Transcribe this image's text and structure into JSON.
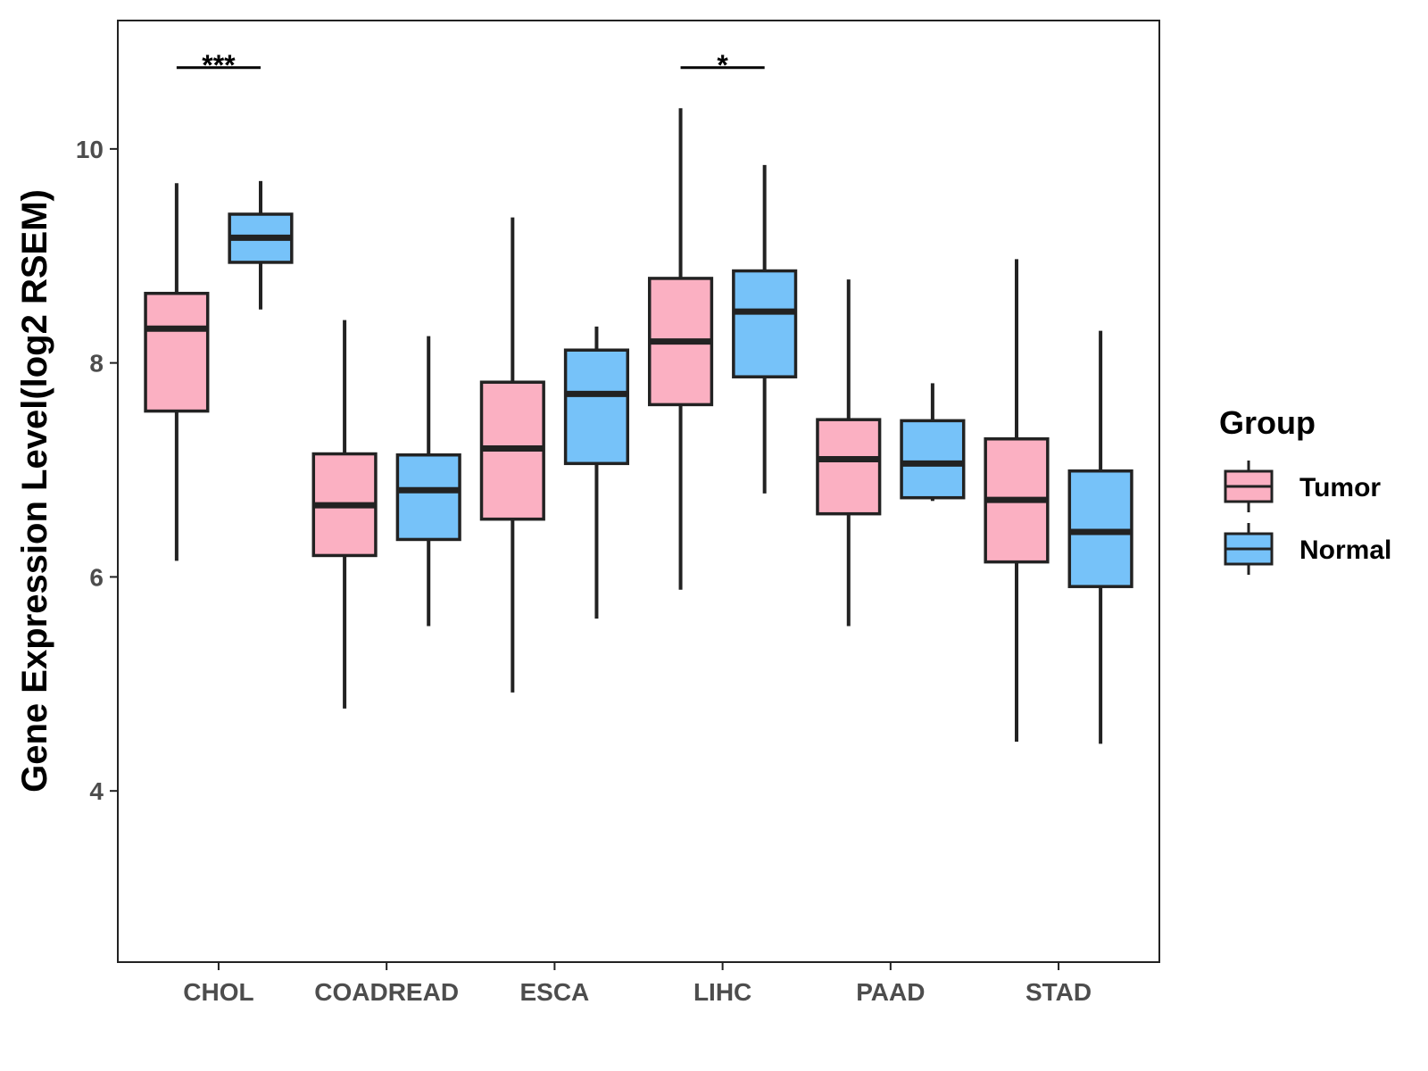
{
  "chart_data": {
    "type": "boxplot",
    "title": "",
    "xlabel": "",
    "ylabel": "Gene Expression Level(log2 RSEM)",
    "ylim": [
      2.4,
      11.2
    ],
    "yticks": [
      4,
      6,
      8,
      10
    ],
    "categories": [
      "CHOL",
      "COADREAD",
      "ESCA",
      "LIHC",
      "PAAD",
      "STAD"
    ],
    "legend": {
      "title": "Group",
      "position": "right"
    },
    "series": [
      {
        "name": "Tumor",
        "color": "#fbb0c2",
        "boxes": [
          {
            "min": 6.15,
            "q1": 7.55,
            "median": 8.32,
            "q3": 8.65,
            "max": 9.68
          },
          {
            "min": 4.77,
            "q1": 6.2,
            "median": 6.67,
            "q3": 7.15,
            "max": 8.4
          },
          {
            "min": 4.92,
            "q1": 6.54,
            "median": 7.2,
            "q3": 7.82,
            "max": 9.36
          },
          {
            "min": 5.88,
            "q1": 7.61,
            "median": 8.2,
            "q3": 8.79,
            "max": 10.38
          },
          {
            "min": 5.54,
            "q1": 6.59,
            "median": 7.1,
            "q3": 7.47,
            "max": 8.78
          },
          {
            "min": 4.46,
            "q1": 6.14,
            "median": 6.72,
            "q3": 7.29,
            "max": 8.97
          }
        ]
      },
      {
        "name": "Normal",
        "color": "#76c2f9",
        "boxes": [
          {
            "min": 8.5,
            "q1": 8.94,
            "median": 9.17,
            "q3": 9.39,
            "max": 9.7
          },
          {
            "min": 5.54,
            "q1": 6.35,
            "median": 6.81,
            "q3": 7.14,
            "max": 8.25
          },
          {
            "min": 5.61,
            "q1": 7.06,
            "median": 7.71,
            "q3": 8.12,
            "max": 8.34
          },
          {
            "min": 6.78,
            "q1": 7.87,
            "median": 8.48,
            "q3": 8.86,
            "max": 9.85
          },
          {
            "min": 6.71,
            "q1": 6.74,
            "median": 7.06,
            "q3": 7.46,
            "max": 7.81
          },
          {
            "min": 4.44,
            "q1": 5.91,
            "median": 6.42,
            "q3": 6.99,
            "max": 8.3
          }
        ]
      }
    ],
    "annotations": [
      {
        "category": "CHOL",
        "label": "***",
        "y": 10.76
      },
      {
        "category": "LIHC",
        "label": "*",
        "y": 10.76
      }
    ]
  }
}
